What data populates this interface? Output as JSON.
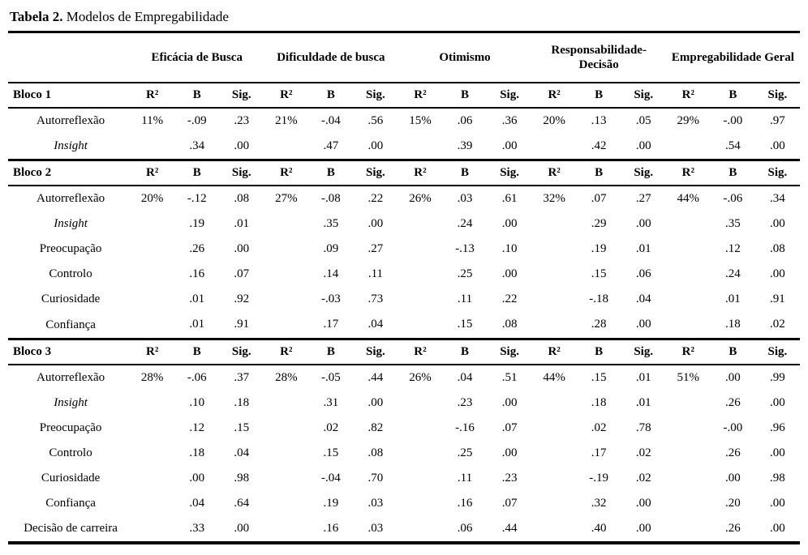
{
  "page": {
    "title_label": "Tabela 2.",
    "title_text": "Modelos de Empregabilidade"
  },
  "table": {
    "groups": [
      {
        "label": "Eficácia de Busca"
      },
      {
        "label": "Dificuldade de busca"
      },
      {
        "label": "Otimismo"
      },
      {
        "label": "Responsabilidade-Decisão"
      },
      {
        "label": "Empregabilidade Geral"
      }
    ],
    "subheaders": [
      "R²",
      "B",
      "Sig."
    ],
    "sections": [
      {
        "header": "Bloco 1",
        "rows": [
          {
            "label": "Autorreflexão",
            "italic": false,
            "cells": [
              "11%",
              "-.09",
              ".23",
              "21%",
              "-.04",
              ".56",
              "15%",
              ".06",
              ".36",
              "20%",
              ".13",
              ".05",
              "29%",
              "-.00",
              ".97"
            ]
          },
          {
            "label": "Insight",
            "italic": true,
            "cells": [
              "",
              ".34",
              ".00",
              "",
              ".47",
              ".00",
              "",
              ".39",
              ".00",
              "",
              ".42",
              ".00",
              "",
              ".54",
              ".00"
            ]
          }
        ]
      },
      {
        "header": "Bloco 2",
        "rows": [
          {
            "label": "Autorreflexão",
            "italic": false,
            "cells": [
              "20%",
              "-.12",
              ".08",
              "27%",
              "-.08",
              ".22",
              "26%",
              ".03",
              ".61",
              "32%",
              ".07",
              ".27",
              "44%",
              "-.06",
              ".34"
            ]
          },
          {
            "label": "Insight",
            "italic": true,
            "cells": [
              "",
              ".19",
              ".01",
              "",
              ".35",
              ".00",
              "",
              ".24",
              ".00",
              "",
              ".29",
              ".00",
              "",
              ".35",
              ".00"
            ]
          },
          {
            "label": "Preocupação",
            "italic": false,
            "cells": [
              "",
              ".26",
              ".00",
              "",
              ".09",
              ".27",
              "",
              "-.13",
              ".10",
              "",
              ".19",
              ".01",
              "",
              ".12",
              ".08"
            ]
          },
          {
            "label": "Controlo",
            "italic": false,
            "cells": [
              "",
              ".16",
              ".07",
              "",
              ".14",
              ".11",
              "",
              ".25",
              ".00",
              "",
              ".15",
              ".06",
              "",
              ".24",
              ".00"
            ]
          },
          {
            "label": "Curiosidade",
            "italic": false,
            "cells": [
              "",
              ".01",
              ".92",
              "",
              "-.03",
              ".73",
              "",
              ".11",
              ".22",
              "",
              "-.18",
              ".04",
              "",
              ".01",
              ".91"
            ]
          },
          {
            "label": "Confiança",
            "italic": false,
            "cells": [
              "",
              ".01",
              ".91",
              "",
              ".17",
              ".04",
              "",
              ".15",
              ".08",
              "",
              ".28",
              ".00",
              "",
              ".18",
              ".02"
            ]
          }
        ]
      },
      {
        "header": "Bloco 3",
        "rows": [
          {
            "label": "Autorreflexão",
            "italic": false,
            "cells": [
              "28%",
              "-.06",
              ".37",
              "28%",
              "-.05",
              ".44",
              "26%",
              ".04",
              ".51",
              "44%",
              ".15",
              ".01",
              "51%",
              ".00",
              ".99"
            ]
          },
          {
            "label": "Insight",
            "italic": true,
            "cells": [
              "",
              ".10",
              ".18",
              "",
              ".31",
              ".00",
              "",
              ".23",
              ".00",
              "",
              ".18",
              ".01",
              "",
              ".26",
              ".00"
            ]
          },
          {
            "label": "Preocupação",
            "italic": false,
            "cells": [
              "",
              ".12",
              ".15",
              "",
              ".02",
              ".82",
              "",
              "-.16",
              ".07",
              "",
              ".02",
              ".78",
              "",
              "-.00",
              ".96"
            ]
          },
          {
            "label": "Controlo",
            "italic": false,
            "cells": [
              "",
              ".18",
              ".04",
              "",
              ".15",
              ".08",
              "",
              ".25",
              ".00",
              "",
              ".17",
              ".02",
              "",
              ".26",
              ".00"
            ]
          },
          {
            "label": "Curiosidade",
            "italic": false,
            "cells": [
              "",
              ".00",
              ".98",
              "",
              "-.04",
              ".70",
              "",
              ".11",
              ".23",
              "",
              "-.19",
              ".02",
              "",
              ".00",
              ".98"
            ]
          },
          {
            "label": "Confiança",
            "italic": false,
            "cells": [
              "",
              ".04",
              ".64",
              "",
              ".19",
              ".03",
              "",
              ".16",
              ".07",
              "",
              ".32",
              ".00",
              "",
              ".20",
              ".00"
            ]
          },
          {
            "label": "Decisão de carreira",
            "italic": false,
            "cells": [
              "",
              ".33",
              ".00",
              "",
              ".16",
              ".03",
              "",
              ".06",
              ".44",
              "",
              ".40",
              ".00",
              "",
              ".26",
              ".00"
            ]
          }
        ]
      }
    ]
  }
}
